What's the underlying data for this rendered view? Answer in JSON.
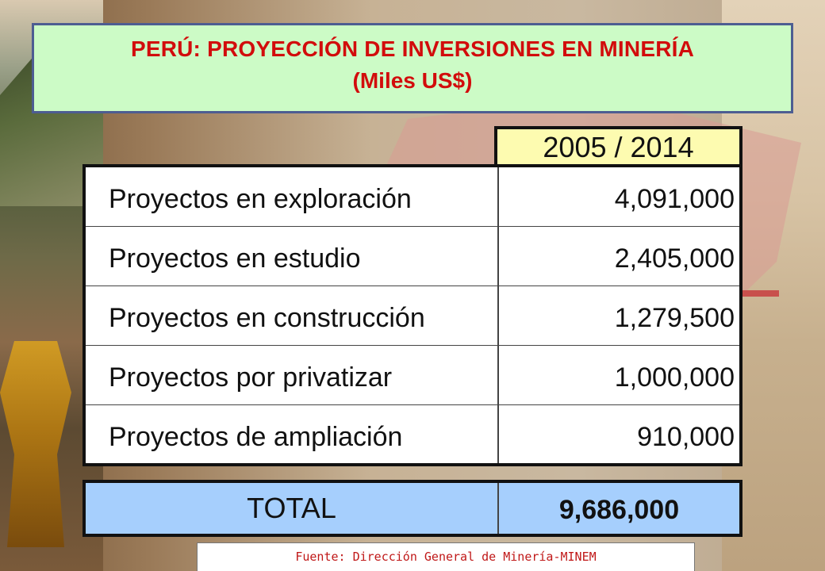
{
  "title": {
    "line1": "PERÚ: PROYECCIÓN DE INVERSIONES EN MINERÍA",
    "line2": "(Miles US$)"
  },
  "table": {
    "period_header": "2005 / 2014",
    "rows": [
      {
        "label": "Proyectos en exploración",
        "value": "4,091,000"
      },
      {
        "label": "Proyectos en estudio",
        "value": "2,405,000"
      },
      {
        "label": "Proyectos en construcción",
        "value": "1,279,500"
      },
      {
        "label": "Proyectos por privatizar",
        "value": "1,000,000"
      },
      {
        "label": "Proyectos de ampliación",
        "value": "910,000"
      }
    ],
    "total": {
      "label": "TOTAL",
      "value": "9,686,000"
    }
  },
  "source": "Fuente: Dirección General de Minería-MINEM",
  "colors": {
    "title_text": "#d20c0c",
    "title_bg": "#ccfbc6",
    "header_bg": "#fdfbb0",
    "total_bg": "#a6cffd"
  }
}
